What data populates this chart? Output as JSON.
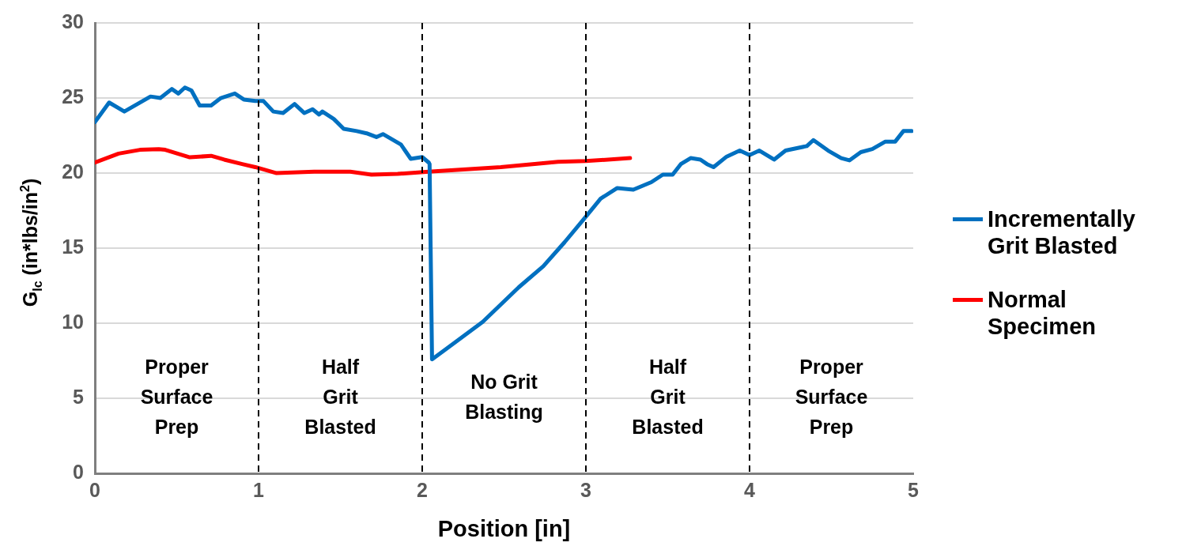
{
  "chart_data": {
    "type": "line",
    "xlabel": "Position [in]",
    "ylabel": "G$_{Ic}$ (in*lbs/in$^{2}$)",
    "xlim": [
      0,
      5
    ],
    "xticks": [
      0,
      1,
      2,
      3,
      4,
      5
    ],
    "ylim": [
      0,
      30
    ],
    "yticks": [
      0,
      5,
      10,
      15,
      20,
      25,
      30
    ],
    "grid": "y",
    "legend": "right",
    "marker": "none",
    "line_style": "solid",
    "series": [
      {
        "name": "Incrementally Grit Blasted",
        "color": "#0070c0",
        "x": [
          0,
          0.087,
          0.18,
          0.34,
          0.4,
          0.47,
          0.51,
          0.55,
          0.59,
          0.64,
          0.71,
          0.77,
          0.855,
          0.91,
          0.98,
          1.03,
          1.09,
          1.15,
          1.22,
          1.28,
          1.33,
          1.37,
          1.39,
          1.46,
          1.52,
          1.6,
          1.66,
          1.72,
          1.76,
          1.87,
          1.93,
          2.0,
          2.04,
          2.045,
          2.06,
          2.16,
          2.37,
          2.59,
          2.74,
          2.87,
          3.0,
          3.09,
          3.19,
          3.29,
          3.4,
          3.47,
          3.53,
          3.58,
          3.64,
          3.7,
          3.74,
          3.78,
          3.86,
          3.94,
          4.0,
          4.06,
          4.15,
          4.22,
          4.35,
          4.39,
          4.48,
          4.56,
          4.61,
          4.68,
          4.75,
          4.83,
          4.89,
          4.94,
          4.99
        ],
        "values": [
          23.4,
          24.7,
          24.1,
          25.1,
          25.0,
          25.6,
          25.3,
          25.7,
          25.5,
          24.5,
          24.5,
          25.0,
          25.3,
          24.9,
          24.8,
          24.8,
          24.1,
          24.0,
          24.6,
          24.0,
          24.25,
          23.9,
          24.1,
          23.6,
          22.95,
          22.8,
          22.65,
          22.4,
          22.6,
          21.9,
          20.95,
          21.07,
          20.7,
          20.6,
          7.6,
          8.4,
          10.1,
          12.4,
          13.8,
          15.4,
          17.1,
          18.3,
          19.0,
          18.9,
          19.4,
          19.9,
          19.9,
          20.6,
          21.0,
          20.9,
          20.6,
          20.4,
          21.1,
          21.5,
          21.2,
          21.5,
          20.9,
          21.5,
          21.8,
          22.2,
          21.5,
          21.0,
          20.85,
          21.4,
          21.6,
          22.1,
          22.1,
          22.8,
          22.8
        ]
      },
      {
        "name": "Normal Specimen",
        "color": "#ff0000",
        "x": [
          0,
          0.145,
          0.275,
          0.39,
          0.43,
          0.58,
          0.71,
          0.79,
          0.9,
          0.98,
          1.11,
          1.34,
          1.56,
          1.69,
          1.85,
          2.04,
          2.48,
          2.83,
          3.0,
          3.27
        ],
        "values": [
          20.7,
          21.3,
          21.55,
          21.6,
          21.55,
          21.05,
          21.15,
          20.9,
          20.6,
          20.4,
          20.0,
          20.1,
          20.1,
          19.9,
          19.95,
          20.1,
          20.4,
          20.75,
          20.8,
          21.0
        ]
      }
    ],
    "ref_lines": [
      {
        "axis": "x",
        "value": 1,
        "color": "#000000",
        "line_style": "dashed"
      },
      {
        "axis": "x",
        "value": 2,
        "color": "#000000",
        "line_style": "dashed"
      },
      {
        "axis": "x",
        "value": 3,
        "color": "#000000",
        "line_style": "dashed"
      },
      {
        "axis": "x",
        "value": 4,
        "color": "#000000",
        "line_style": "dashed"
      }
    ],
    "annotations": [
      "Proper\nSurface\nPrep",
      "Half\nGrit\nBlasted",
      "No Grit\nBlasting",
      "Half\nGrit\nBlasted",
      "Proper\nSurface\nPrep"
    ]
  }
}
